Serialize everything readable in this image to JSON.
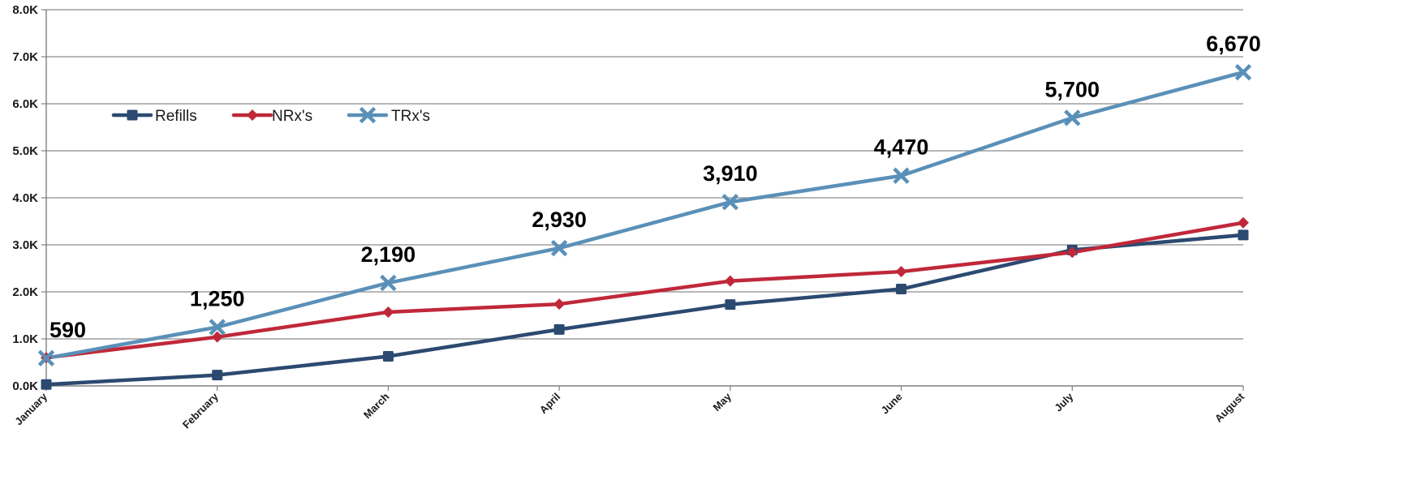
{
  "chart_data": {
    "type": "line",
    "title": "",
    "xlabel": "",
    "ylabel": "",
    "categories": [
      "January",
      "February",
      "March",
      "April",
      "May",
      "June",
      "July",
      "August"
    ],
    "ylim": [
      0,
      8000
    ],
    "y_ticks": [
      0,
      1000,
      2000,
      3000,
      4000,
      5000,
      6000,
      7000,
      8000
    ],
    "y_tick_labels": [
      "0.0K",
      "1.0K",
      "2.0K",
      "3.0K",
      "4.0K",
      "5.0K",
      "6.0K",
      "7.0K",
      "8.0K"
    ],
    "grid": true,
    "legend_position": "upper-left",
    "series": [
      {
        "name": "Refills",
        "color": "#2c4a70",
        "marker": "square",
        "values": [
          30,
          230,
          630,
          1200,
          1730,
          2060,
          2890,
          3210
        ]
      },
      {
        "name": "NRx's",
        "color": "#c0283a",
        "marker": "diamond",
        "values": [
          600,
          1040,
          1570,
          1740,
          2230,
          2430,
          2840,
          3470
        ]
      },
      {
        "name": "TRx's",
        "color": "#5a90b8",
        "marker": "x",
        "values": [
          590,
          1250,
          2190,
          2930,
          3910,
          4470,
          5700,
          6670
        ]
      }
    ],
    "data_labels": {
      "series": "TRx's",
      "labels": [
        "590",
        "1,250",
        "2,190",
        "2,930",
        "3,910",
        "4,470",
        "5,700",
        "6,670"
      ]
    }
  }
}
